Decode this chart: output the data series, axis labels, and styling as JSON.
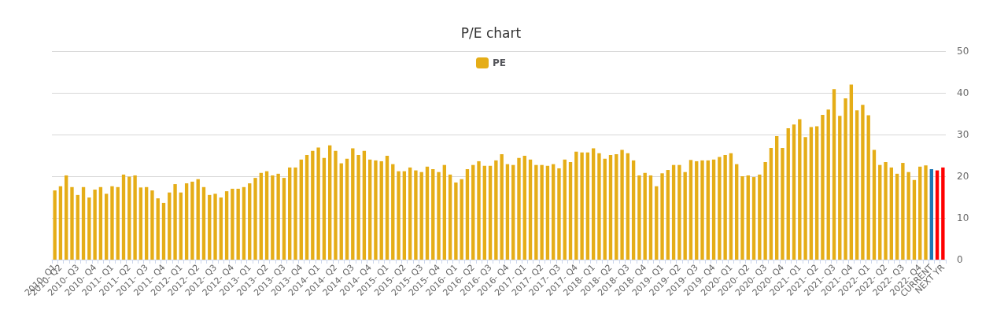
{
  "chart_data": {
    "type": "bar",
    "title": "P/E chart",
    "categories": [
      "2010- Q1",
      "2010- Q2",
      null,
      null,
      "2010- Q3",
      null,
      null,
      "2010- Q4",
      null,
      null,
      "2011- Q1",
      null,
      null,
      "2011- Q2",
      null,
      null,
      "2011- Q3",
      null,
      null,
      "2011- Q4",
      null,
      null,
      "2012- Q1",
      null,
      null,
      "2012- Q2",
      null,
      null,
      "2012- Q3",
      null,
      null,
      "2012- Q4",
      null,
      null,
      "2013- Q1",
      null,
      null,
      "2013- Q2",
      null,
      null,
      "2013- Q3",
      null,
      null,
      "2013- Q4",
      null,
      null,
      "2014- Q1",
      null,
      null,
      "2014- Q2",
      null,
      null,
      "2014- Q3",
      null,
      null,
      "2014- Q4",
      null,
      null,
      "2015- Q1",
      null,
      null,
      "2015- Q2",
      null,
      null,
      "2015- Q3",
      null,
      null,
      "2015- Q4",
      null,
      null,
      "2016- Q1",
      null,
      null,
      "2016- Q2",
      null,
      null,
      "2016- Q3",
      null,
      null,
      "2016- Q4",
      null,
      null,
      "2017- Q1",
      null,
      null,
      "2017- Q2",
      null,
      null,
      "2017- Q3",
      null,
      null,
      "2017- Q4",
      null,
      null,
      "2018- Q1",
      null,
      null,
      "2018- Q2",
      null,
      null,
      "2018- Q3",
      null,
      null,
      "2018- Q4",
      null,
      null,
      "2019- Q1",
      null,
      null,
      "2019- Q2",
      null,
      null,
      "2019- Q3",
      null,
      null,
      "2019- Q4",
      null,
      null,
      "2020- Q1",
      null,
      null,
      "2020- Q2",
      null,
      null,
      "2020- Q3",
      null,
      null,
      "2020- Q4",
      null,
      null,
      "2021- Q1",
      null,
      null,
      "2021- Q2",
      null,
      null,
      "2021- Q3",
      null,
      null,
      "2021- Q4",
      null,
      null,
      "2022- Q1",
      null,
      null,
      "2022- Q2",
      null,
      null,
      "2022- Q3",
      null,
      null,
      "2022- Q4",
      null,
      "CURRENT",
      null,
      "NEXT YR"
    ],
    "series": [
      {
        "name": "PE",
        "color": "#e5ad17",
        "values": [
          16.6,
          17.6,
          20.2,
          17.4,
          15.5,
          17.4,
          14.9,
          16.8,
          17.4,
          15.8,
          17.6,
          17.4,
          20.4,
          19.9,
          20.2,
          17.3,
          17.4,
          16.6,
          14.7,
          13.6,
          16.1,
          18.1,
          16.1,
          18.3,
          18.7,
          19.3,
          17.4,
          15.5,
          15.8,
          14.9,
          16.4,
          17.0,
          17.0,
          17.4,
          18.3,
          19.6,
          20.8,
          21.2,
          20.2,
          20.6,
          19.6,
          22.1,
          22.1,
          24.0,
          25.1,
          26.1,
          26.9,
          24.4,
          27.4,
          26.1,
          23.1,
          24.2,
          26.7,
          25.1,
          26.1,
          24.0,
          23.8,
          23.6,
          24.9,
          22.9,
          21.2,
          21.2,
          22.1,
          21.4,
          21.0,
          22.3,
          21.7,
          21.0,
          22.7,
          20.4,
          18.5,
          19.3,
          21.7,
          22.7,
          23.6,
          22.5,
          22.5,
          23.8,
          25.3,
          22.9,
          22.7,
          24.4,
          24.9,
          24.0,
          22.7,
          22.7,
          22.5,
          22.9,
          21.9,
          24.0,
          23.4,
          25.9,
          25.7,
          25.7,
          26.7,
          25.5,
          24.2,
          25.1,
          25.3,
          26.3,
          25.5,
          23.8,
          20.2,
          20.8,
          20.2,
          17.6,
          20.7,
          21.5,
          22.7,
          22.7,
          21.0,
          23.9,
          23.6,
          23.8,
          23.8,
          24.0,
          24.6,
          25.1,
          25.5,
          22.9,
          20.0,
          20.2,
          19.8,
          20.4,
          23.4,
          26.8,
          29.6,
          26.8,
          31.5,
          32.4,
          33.7,
          29.4,
          31.8,
          32.0,
          34.7,
          36.0,
          40.9,
          34.5,
          38.7,
          42.0,
          35.8,
          37.1,
          34.6,
          26.3,
          22.7,
          23.4,
          22.1,
          20.6,
          23.2,
          21.0,
          19.1,
          22.3,
          22.6,
          21.7,
          21.4,
          22.1
        ],
        "colors": [
          "#e5ad17",
          "#e5ad17",
          "#e5ad17",
          "#e5ad17",
          "#e5ad17",
          "#e5ad17",
          "#e5ad17",
          "#e5ad17",
          "#e5ad17",
          "#e5ad17",
          "#e5ad17",
          "#e5ad17",
          "#e5ad17",
          "#e5ad17",
          "#e5ad17",
          "#e5ad17",
          "#e5ad17",
          "#e5ad17",
          "#e5ad17",
          "#e5ad17",
          "#e5ad17",
          "#e5ad17",
          "#e5ad17",
          "#e5ad17",
          "#e5ad17",
          "#e5ad17",
          "#e5ad17",
          "#e5ad17",
          "#e5ad17",
          "#e5ad17",
          "#e5ad17",
          "#e5ad17",
          "#e5ad17",
          "#e5ad17",
          "#e5ad17",
          "#e5ad17",
          "#e5ad17",
          "#e5ad17",
          "#e5ad17",
          "#e5ad17",
          "#e5ad17",
          "#e5ad17",
          "#e5ad17",
          "#e5ad17",
          "#e5ad17",
          "#e5ad17",
          "#e5ad17",
          "#e5ad17",
          "#e5ad17",
          "#e5ad17",
          "#e5ad17",
          "#e5ad17",
          "#e5ad17",
          "#e5ad17",
          "#e5ad17",
          "#e5ad17",
          "#e5ad17",
          "#e5ad17",
          "#e5ad17",
          "#e5ad17",
          "#e5ad17",
          "#e5ad17",
          "#e5ad17",
          "#e5ad17",
          "#e5ad17",
          "#e5ad17",
          "#e5ad17",
          "#e5ad17",
          "#e5ad17",
          "#e5ad17",
          "#e5ad17",
          "#e5ad17",
          "#e5ad17",
          "#e5ad17",
          "#e5ad17",
          "#e5ad17",
          "#e5ad17",
          "#e5ad17",
          "#e5ad17",
          "#e5ad17",
          "#e5ad17",
          "#e5ad17",
          "#e5ad17",
          "#e5ad17",
          "#e5ad17",
          "#e5ad17",
          "#e5ad17",
          "#e5ad17",
          "#e5ad17",
          "#e5ad17",
          "#e5ad17",
          "#e5ad17",
          "#e5ad17",
          "#e5ad17",
          "#e5ad17",
          "#e5ad17",
          "#e5ad17",
          "#e5ad17",
          "#e5ad17",
          "#e5ad17",
          "#e5ad17",
          "#e5ad17",
          "#e5ad17",
          "#e5ad17",
          "#e5ad17",
          "#e5ad17",
          "#e5ad17",
          "#e5ad17",
          "#e5ad17",
          "#e5ad17",
          "#e5ad17",
          "#e5ad17",
          "#e5ad17",
          "#e5ad17",
          "#e5ad17",
          "#e5ad17",
          "#e5ad17",
          "#e5ad17",
          "#e5ad17",
          "#e5ad17",
          "#e5ad17",
          "#e5ad17",
          "#e5ad17",
          "#e5ad17",
          "#e5ad17",
          "#e5ad17",
          "#e5ad17",
          "#e5ad17",
          "#e5ad17",
          "#e5ad17",
          "#e5ad17",
          "#e5ad17",
          "#e5ad17",
          "#e5ad17",
          "#e5ad17",
          "#e5ad17",
          "#e5ad17",
          "#e5ad17",
          "#e5ad17",
          "#e5ad17",
          "#e5ad17",
          "#e5ad17",
          "#e5ad17",
          "#e5ad17",
          "#e5ad17",
          "#e5ad17",
          "#e5ad17",
          "#e5ad17",
          "#e5ad17",
          "#e5ad17",
          "#e5ad17",
          "#e5ad17",
          "#e5ad17",
          "#1f77b4",
          "#ff0000",
          "#ff0000"
        ]
      }
    ],
    "ylim": [
      0,
      50
    ],
    "yticks": [
      0,
      10,
      20,
      30,
      40,
      50
    ],
    "grid": true,
    "legend": "top"
  }
}
